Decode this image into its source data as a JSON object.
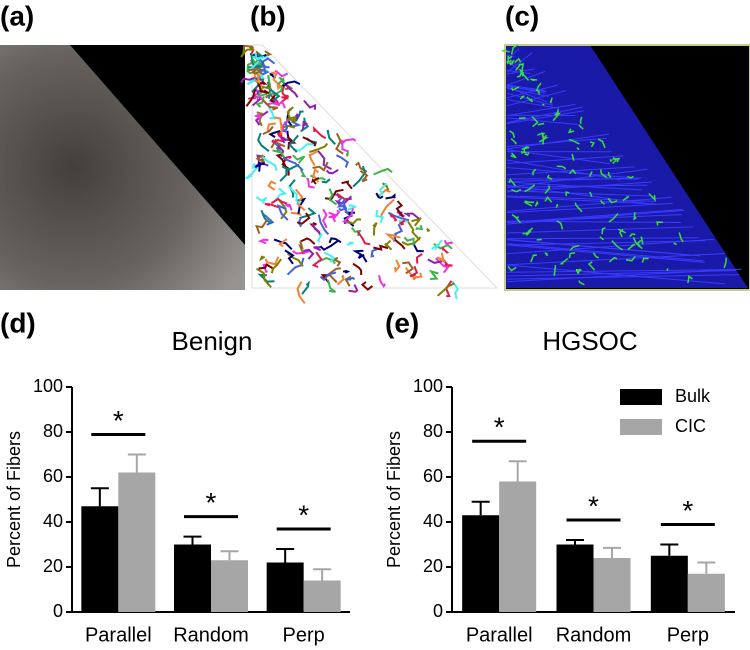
{
  "panels": [
    "(a)",
    "(b)",
    "(c)"
  ],
  "chart_data": [
    {
      "type": "bar",
      "panel_label": "(d)",
      "title": "Benign",
      "y_label": "Percent of Fibers",
      "categories": [
        "Parallel",
        "Random",
        "Perp"
      ],
      "series": [
        {
          "color": "#000000",
          "values": [
            47,
            30,
            22
          ],
          "errors": [
            8,
            3.5,
            6
          ]
        },
        {
          "color": "#a6a6a6",
          "values": [
            62,
            23,
            14
          ],
          "errors": [
            8,
            4,
            5
          ]
        }
      ],
      "annotations": [
        "*",
        "*",
        "*"
      ],
      "ylim": [
        0,
        100
      ],
      "yticks": [
        0,
        20,
        40,
        60,
        80,
        100
      ]
    },
    {
      "type": "bar",
      "panel_label": "(e)",
      "title": "HGSOC",
      "y_label": "Percent of Fibers",
      "categories": [
        "Parallel",
        "Random",
        "Perp"
      ],
      "series": [
        {
          "name": "Bulk",
          "color": "#000000",
          "values": [
            43,
            30,
            25
          ],
          "errors": [
            6,
            2,
            5
          ]
        },
        {
          "name": "CIC",
          "color": "#a6a6a6",
          "values": [
            58,
            24,
            17
          ],
          "errors": [
            9,
            4.5,
            5
          ]
        }
      ],
      "annotations": [
        "*",
        "*",
        "*"
      ],
      "legend": "upper right",
      "ylim": [
        0,
        100
      ],
      "yticks": [
        0,
        20,
        40,
        60,
        80,
        100
      ]
    }
  ]
}
